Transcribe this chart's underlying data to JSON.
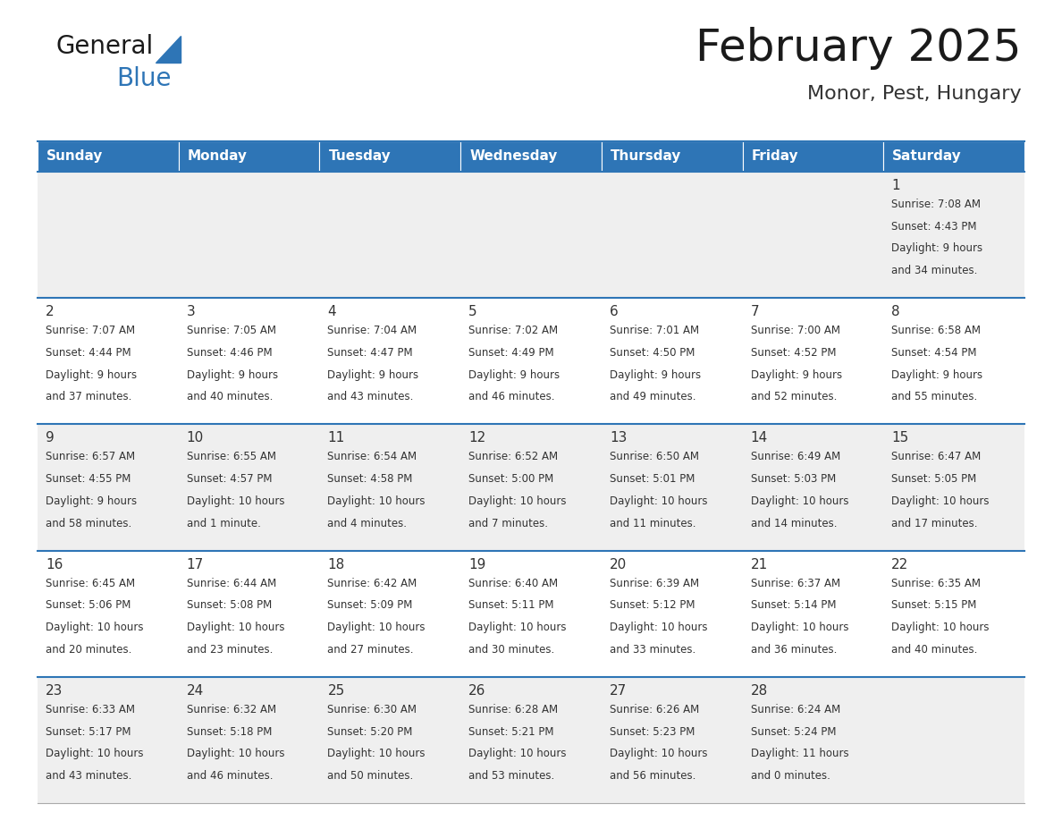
{
  "title": "February 2025",
  "subtitle": "Monor, Pest, Hungary",
  "header_bg": "#2e75b6",
  "header_text_color": "#ffffff",
  "cell_bg_odd": "#efefef",
  "cell_bg_even": "#ffffff",
  "row_line_color": "#2e75b6",
  "text_color": "#333333",
  "days_of_week": [
    "Sunday",
    "Monday",
    "Tuesday",
    "Wednesday",
    "Thursday",
    "Friday",
    "Saturday"
  ],
  "calendar_data": [
    [
      {
        "day": null,
        "sunrise": null,
        "sunset": null,
        "daylight": null
      },
      {
        "day": null,
        "sunrise": null,
        "sunset": null,
        "daylight": null
      },
      {
        "day": null,
        "sunrise": null,
        "sunset": null,
        "daylight": null
      },
      {
        "day": null,
        "sunrise": null,
        "sunset": null,
        "daylight": null
      },
      {
        "day": null,
        "sunrise": null,
        "sunset": null,
        "daylight": null
      },
      {
        "day": null,
        "sunrise": null,
        "sunset": null,
        "daylight": null
      },
      {
        "day": 1,
        "sunrise": "7:08 AM",
        "sunset": "4:43 PM",
        "daylight": "9 hours\nand 34 minutes."
      }
    ],
    [
      {
        "day": 2,
        "sunrise": "7:07 AM",
        "sunset": "4:44 PM",
        "daylight": "9 hours\nand 37 minutes."
      },
      {
        "day": 3,
        "sunrise": "7:05 AM",
        "sunset": "4:46 PM",
        "daylight": "9 hours\nand 40 minutes."
      },
      {
        "day": 4,
        "sunrise": "7:04 AM",
        "sunset": "4:47 PM",
        "daylight": "9 hours\nand 43 minutes."
      },
      {
        "day": 5,
        "sunrise": "7:02 AM",
        "sunset": "4:49 PM",
        "daylight": "9 hours\nand 46 minutes."
      },
      {
        "day": 6,
        "sunrise": "7:01 AM",
        "sunset": "4:50 PM",
        "daylight": "9 hours\nand 49 minutes."
      },
      {
        "day": 7,
        "sunrise": "7:00 AM",
        "sunset": "4:52 PM",
        "daylight": "9 hours\nand 52 minutes."
      },
      {
        "day": 8,
        "sunrise": "6:58 AM",
        "sunset": "4:54 PM",
        "daylight": "9 hours\nand 55 minutes."
      }
    ],
    [
      {
        "day": 9,
        "sunrise": "6:57 AM",
        "sunset": "4:55 PM",
        "daylight": "9 hours\nand 58 minutes."
      },
      {
        "day": 10,
        "sunrise": "6:55 AM",
        "sunset": "4:57 PM",
        "daylight": "10 hours\nand 1 minute."
      },
      {
        "day": 11,
        "sunrise": "6:54 AM",
        "sunset": "4:58 PM",
        "daylight": "10 hours\nand 4 minutes."
      },
      {
        "day": 12,
        "sunrise": "6:52 AM",
        "sunset": "5:00 PM",
        "daylight": "10 hours\nand 7 minutes."
      },
      {
        "day": 13,
        "sunrise": "6:50 AM",
        "sunset": "5:01 PM",
        "daylight": "10 hours\nand 11 minutes."
      },
      {
        "day": 14,
        "sunrise": "6:49 AM",
        "sunset": "5:03 PM",
        "daylight": "10 hours\nand 14 minutes."
      },
      {
        "day": 15,
        "sunrise": "6:47 AM",
        "sunset": "5:05 PM",
        "daylight": "10 hours\nand 17 minutes."
      }
    ],
    [
      {
        "day": 16,
        "sunrise": "6:45 AM",
        "sunset": "5:06 PM",
        "daylight": "10 hours\nand 20 minutes."
      },
      {
        "day": 17,
        "sunrise": "6:44 AM",
        "sunset": "5:08 PM",
        "daylight": "10 hours\nand 23 minutes."
      },
      {
        "day": 18,
        "sunrise": "6:42 AM",
        "sunset": "5:09 PM",
        "daylight": "10 hours\nand 27 minutes."
      },
      {
        "day": 19,
        "sunrise": "6:40 AM",
        "sunset": "5:11 PM",
        "daylight": "10 hours\nand 30 minutes."
      },
      {
        "day": 20,
        "sunrise": "6:39 AM",
        "sunset": "5:12 PM",
        "daylight": "10 hours\nand 33 minutes."
      },
      {
        "day": 21,
        "sunrise": "6:37 AM",
        "sunset": "5:14 PM",
        "daylight": "10 hours\nand 36 minutes."
      },
      {
        "day": 22,
        "sunrise": "6:35 AM",
        "sunset": "5:15 PM",
        "daylight": "10 hours\nand 40 minutes."
      }
    ],
    [
      {
        "day": 23,
        "sunrise": "6:33 AM",
        "sunset": "5:17 PM",
        "daylight": "10 hours\nand 43 minutes."
      },
      {
        "day": 24,
        "sunrise": "6:32 AM",
        "sunset": "5:18 PM",
        "daylight": "10 hours\nand 46 minutes."
      },
      {
        "day": 25,
        "sunrise": "6:30 AM",
        "sunset": "5:20 PM",
        "daylight": "10 hours\nand 50 minutes."
      },
      {
        "day": 26,
        "sunrise": "6:28 AM",
        "sunset": "5:21 PM",
        "daylight": "10 hours\nand 53 minutes."
      },
      {
        "day": 27,
        "sunrise": "6:26 AM",
        "sunset": "5:23 PM",
        "daylight": "10 hours\nand 56 minutes."
      },
      {
        "day": 28,
        "sunrise": "6:24 AM",
        "sunset": "5:24 PM",
        "daylight": "11 hours\nand 0 minutes."
      },
      {
        "day": null,
        "sunrise": null,
        "sunset": null,
        "daylight": null
      }
    ]
  ],
  "fig_width": 11.88,
  "fig_height": 9.18,
  "dpi": 100
}
